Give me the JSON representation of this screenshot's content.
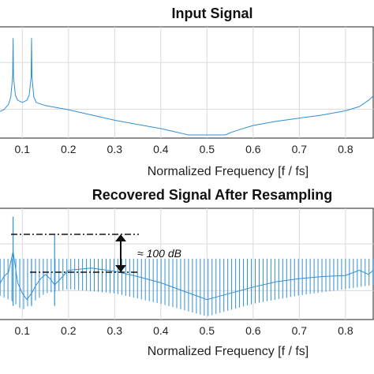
{
  "chart_data": [
    {
      "type": "line",
      "title": "Input Signal",
      "xlabel": "Normalized Frequency [f / fs]",
      "ylabel": "",
      "x_ticks": [
        "0.1",
        "0.2",
        "0.3",
        "0.4",
        "0.5",
        "0.6",
        "0.7",
        "0.8"
      ],
      "xlim": [
        0.05,
        0.86
      ],
      "grid": true,
      "line_color": "#2f8fd6",
      "series": [
        {
          "x": [
            0.05,
            0.06,
            0.07,
            0.075,
            0.079,
            0.08,
            0.081,
            0.085,
            0.09,
            0.1,
            0.11,
            0.115,
            0.119,
            0.12,
            0.121,
            0.125,
            0.13,
            0.15,
            0.2,
            0.25,
            0.3,
            0.35,
            0.4,
            0.43,
            0.45,
            0.46,
            0.5,
            0.54,
            0.55,
            0.57,
            0.6,
            0.65,
            0.7,
            0.75,
            0.8,
            0.83,
            0.85,
            0.86
          ],
          "values": [
            0.22,
            0.24,
            0.29,
            0.36,
            0.55,
            0.92,
            0.55,
            0.38,
            0.33,
            0.31,
            0.33,
            0.38,
            0.55,
            0.92,
            0.55,
            0.36,
            0.31,
            0.28,
            0.24,
            0.19,
            0.14,
            0.1,
            0.06,
            0.03,
            0.01,
            0.0,
            0.0,
            0.0,
            0.02,
            0.05,
            0.09,
            0.13,
            0.16,
            0.19,
            0.23,
            0.27,
            0.33,
            0.37
          ]
        }
      ]
    },
    {
      "type": "line",
      "title": "Recovered Signal After Resampling",
      "xlabel": "Normalized Frequency [f / fs]",
      "ylabel": "",
      "x_ticks": [
        "0.1",
        "0.2",
        "0.3",
        "0.4",
        "0.5",
        "0.6",
        "0.7",
        "0.8"
      ],
      "xlim": [
        0.05,
        0.86
      ],
      "grid": true,
      "line_color": "#2f8fd6",
      "annotation": "≈ 100 dB",
      "envelope": {
        "x": [
          0.05,
          0.06,
          0.07,
          0.08,
          0.09,
          0.1,
          0.11,
          0.12,
          0.13,
          0.14,
          0.15,
          0.16,
          0.17,
          0.2,
          0.25,
          0.3,
          0.35,
          0.4,
          0.45,
          0.5,
          0.55,
          0.6,
          0.65,
          0.7,
          0.75,
          0.8,
          0.83,
          0.85,
          0.86
        ],
        "values": [
          0.3,
          0.38,
          0.42,
          0.62,
          0.32,
          0.22,
          0.16,
          0.22,
          0.3,
          0.36,
          0.4,
          0.36,
          0.3,
          0.44,
          0.46,
          0.43,
          0.38,
          0.32,
          0.24,
          0.16,
          0.22,
          0.28,
          0.33,
          0.36,
          0.38,
          0.39,
          0.44,
          0.4,
          0.44
        ]
      },
      "spur_floor": {
        "x": [
          0.05,
          0.08,
          0.1,
          0.15,
          0.2,
          0.3,
          0.4,
          0.45,
          0.5,
          0.55,
          0.6,
          0.7,
          0.8,
          0.86
        ],
        "values": [
          0.2,
          0.14,
          0.06,
          0.22,
          0.26,
          0.22,
          0.12,
          0.06,
          0.0,
          0.06,
          0.12,
          0.2,
          0.26,
          0.3
        ]
      },
      "spur_top": 0.55,
      "spikes": [
        {
          "x": 0.08,
          "value": 0.95
        },
        {
          "x": 0.12,
          "value": 0.55
        },
        {
          "x": 0.17,
          "value": 0.78
        }
      ]
    }
  ]
}
